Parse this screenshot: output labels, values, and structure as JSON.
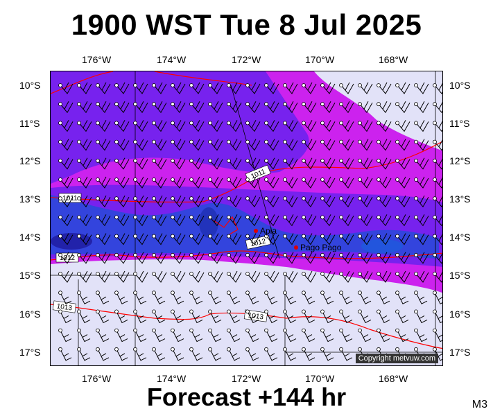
{
  "title": "1900 WST Tue 8 Jul 2025",
  "footer": "Forecast +144 hr",
  "model": "M3",
  "copyright": "Copyright metvuw.com",
  "axes": {
    "lat_labels": [
      "10°S",
      "11°S",
      "12°S",
      "13°S",
      "14°S",
      "15°S",
      "16°S",
      "17°S"
    ],
    "lon_labels": [
      "176°W",
      "174°W",
      "172°W",
      "170°W",
      "168°W"
    ]
  },
  "places": [
    "Apia",
    "Pago Pago"
  ],
  "isobars": [
    "1011",
    "1011",
    "1012",
    "1012",
    "1013",
    "1013"
  ],
  "colors": {
    "heavy": "#2222cc",
    "medium": "#7722ee",
    "light": "#cc22ee",
    "calm": "#e2e2f8",
    "isobar": "#ff0000"
  }
}
